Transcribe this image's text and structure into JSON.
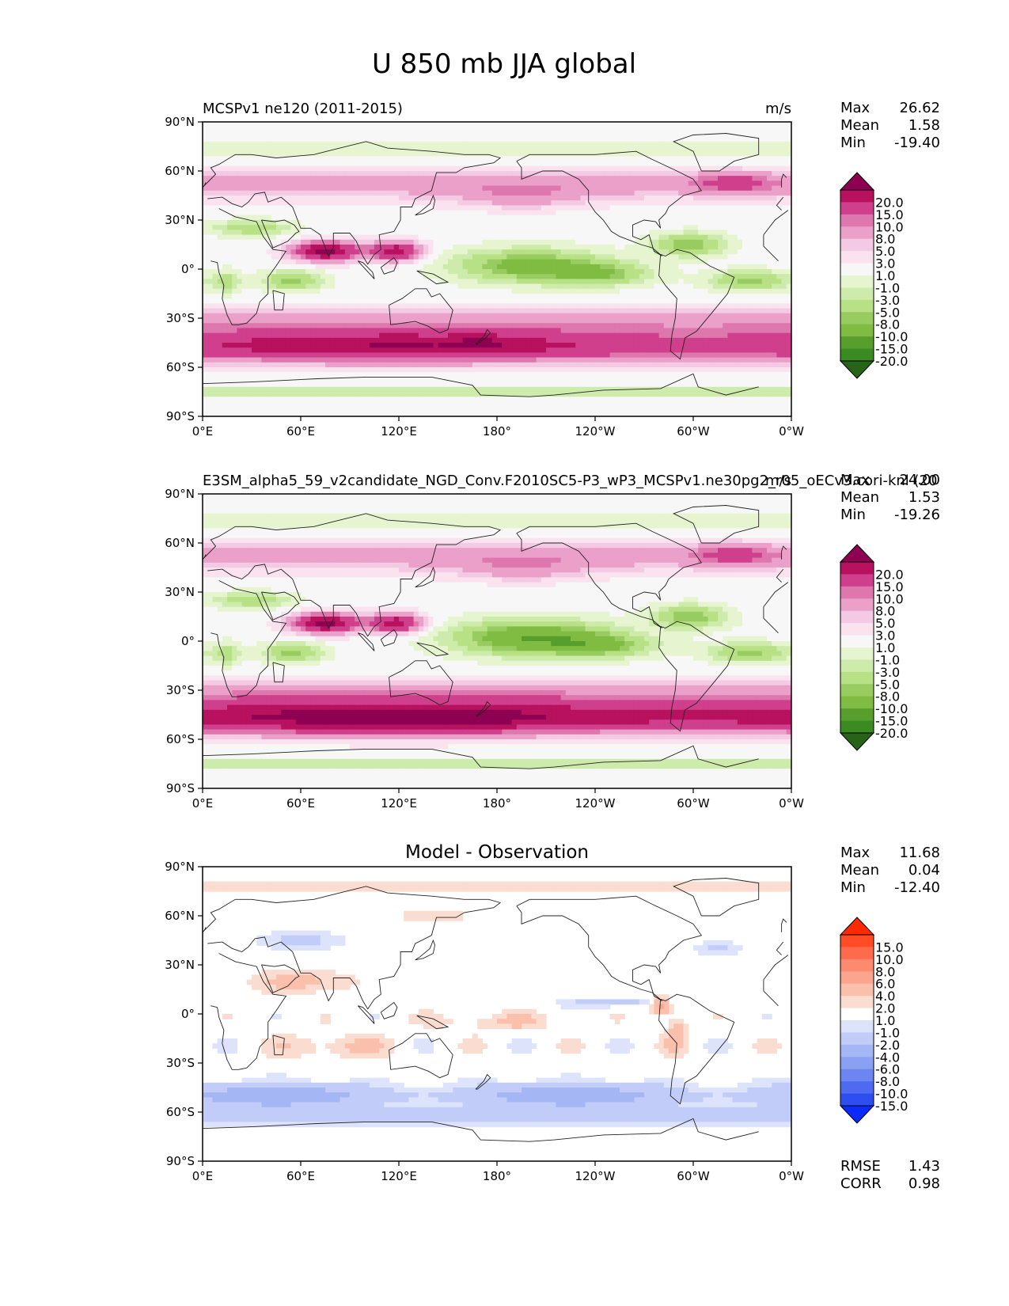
{
  "figure": {
    "title": "U 850 mb JJA global"
  },
  "chart_data": [
    {
      "type": "heatmap",
      "panel": "test",
      "title_left": "MCSPv1 ne120 (2011-2015)",
      "title_center": "",
      "units": "m/s",
      "stats": [
        {
          "label": "Max",
          "value": "26.62"
        },
        {
          "label": "Mean",
          "value": "1.58"
        },
        {
          "label": "Min",
          "value": "-19.40"
        }
      ],
      "yticks": [
        "90°N",
        "60°N",
        "30°N",
        "0°",
        "30°S",
        "60°S",
        "90°S"
      ],
      "xticks": [
        "0°E",
        "60°E",
        "120°E",
        "180°",
        "120°W",
        "60°W",
        "0°W"
      ],
      "colorbar": {
        "levels": [
          "20.0",
          "15.0",
          "10.0",
          "8.0",
          "5.0",
          "3.0",
          "1.0",
          "-1.0",
          "-3.0",
          "-5.0",
          "-8.0",
          "-10.0",
          "-15.0",
          "-20.0"
        ],
        "colors": [
          "#8e0152",
          "#b7115f",
          "#cf3f8c",
          "#de77ae",
          "#eaa0c8",
          "#f4c9e3",
          "#fae2ef",
          "#f7f7f7",
          "#e6f5d0",
          "#cdebab",
          "#b8e186",
          "#98cc60",
          "#7fbc41",
          "#589e2d",
          "#3c8a22",
          "#276419"
        ]
      },
      "field": "u850_model"
    },
    {
      "type": "heatmap",
      "panel": "reference",
      "title_left": "E3SM_alpha5_59_v2candidate_NGD_Conv.F2010SC5-P3_wP3_MCSPv1.ne30pg2_r05_oECv3.cori-knl (20",
      "title_center": "",
      "units": "m/s",
      "stats": [
        {
          "label": "Max",
          "value": "24.00"
        },
        {
          "label": "Mean",
          "value": "1.53"
        },
        {
          "label": "Min",
          "value": "-19.26"
        }
      ],
      "yticks": [
        "90°N",
        "60°N",
        "30°N",
        "0°",
        "30°S",
        "60°S",
        "90°S"
      ],
      "xticks": [
        "0°E",
        "60°E",
        "120°E",
        "180°",
        "120°W",
        "60°W",
        "0°W"
      ],
      "colorbar": {
        "levels": [
          "20.0",
          "15.0",
          "10.0",
          "8.0",
          "5.0",
          "3.0",
          "1.0",
          "-1.0",
          "-3.0",
          "-5.0",
          "-8.0",
          "-10.0",
          "-15.0",
          "-20.0"
        ],
        "colors": [
          "#8e0152",
          "#b7115f",
          "#cf3f8c",
          "#de77ae",
          "#eaa0c8",
          "#f4c9e3",
          "#fae2ef",
          "#f7f7f7",
          "#e6f5d0",
          "#cdebab",
          "#b8e186",
          "#98cc60",
          "#7fbc41",
          "#589e2d",
          "#3c8a22",
          "#276419"
        ]
      },
      "field": "u850_ref"
    },
    {
      "type": "heatmap",
      "panel": "diff",
      "title_left": "",
      "title_center": "Model - Observation",
      "units": "",
      "stats": [
        {
          "label": "Max",
          "value": "11.68"
        },
        {
          "label": "Mean",
          "value": "0.04"
        },
        {
          "label": "Min",
          "value": "-12.40"
        }
      ],
      "bottom_stats": [
        {
          "label": "RMSE",
          "value": "1.43"
        },
        {
          "label": "CORR",
          "value": "0.98"
        }
      ],
      "yticks": [
        "90°N",
        "60°N",
        "30°N",
        "0°",
        "30°S",
        "60°S",
        "90°S"
      ],
      "xticks": [
        "0°E",
        "60°E",
        "120°E",
        "180°",
        "120°W",
        "60°W",
        "0°W"
      ],
      "colorbar": {
        "levels": [
          "15.0",
          "10.0",
          "8.0",
          "6.0",
          "4.0",
          "2.0",
          "1.0",
          "-1.0",
          "-2.0",
          "-4.0",
          "-6.0",
          "-8.0",
          "-10.0",
          "-15.0"
        ],
        "colors": [
          "#ff2a00",
          "#ff4c26",
          "#fe6b4c",
          "#fc8a6e",
          "#fba58e",
          "#fac0ac",
          "#fbdcd0",
          "#ffffff",
          "#dce3fb",
          "#c1cdf8",
          "#a5b6f5",
          "#8aa0f3",
          "#6c85f1",
          "#4e6af0",
          "#2f4ef2",
          "#0a2aff"
        ]
      },
      "field": "u850_diff"
    }
  ]
}
